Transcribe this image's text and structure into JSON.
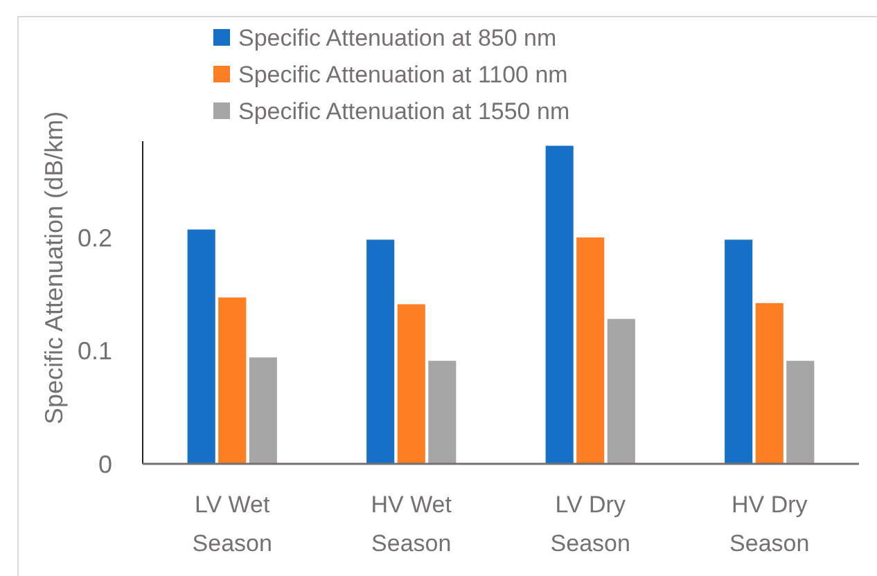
{
  "chart_data": {
    "type": "bar",
    "ylabel": "Specific Attenuation (dB/km)",
    "categories": [
      "LV Wet Season",
      "HV Wet Season",
      "LV Dry Season",
      "HV Dry Season"
    ],
    "series": [
      {
        "name": "Specific Attenuation at 850 nm",
        "color": "#1770c8",
        "values": [
          0.207,
          0.198,
          0.281,
          0.198
        ]
      },
      {
        "name": "Specific Attenuation at 1100 nm",
        "color": "#fd7e23",
        "values": [
          0.147,
          0.141,
          0.2,
          0.142
        ]
      },
      {
        "name": "Specific Attenuation at 1550 nm",
        "color": "#a5a5a5",
        "values": [
          0.094,
          0.091,
          0.128,
          0.091
        ]
      }
    ],
    "ylim": [
      0,
      0.285
    ],
    "yticks": [
      0,
      0.1,
      0.2
    ],
    "grid": false,
    "legend": "top"
  }
}
